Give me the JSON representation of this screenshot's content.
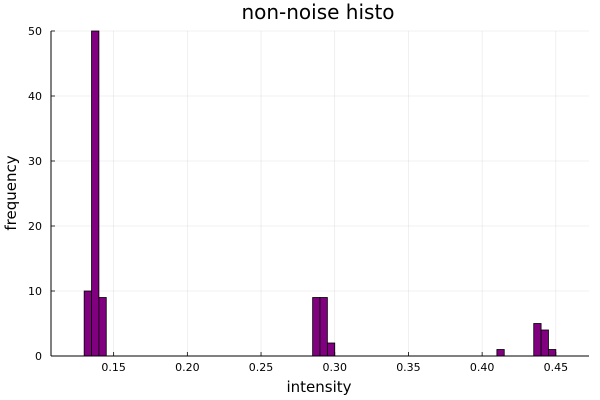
{
  "chart_data": {
    "type": "bar",
    "title": "non-noise histo",
    "xlabel": "intensity",
    "ylabel": "frequency",
    "xlim": [
      0.1075,
      0.4725
    ],
    "ylim": [
      0,
      50
    ],
    "x_ticks": [
      "0.15",
      "0.20",
      "0.25",
      "0.30",
      "0.35",
      "0.40",
      "0.45"
    ],
    "y_ticks": [
      "0",
      "10",
      "20",
      "30",
      "40",
      "50"
    ],
    "grid": true,
    "legend": "none",
    "bar_color": "#800080",
    "bins": [
      {
        "start": 0.13,
        "end": 0.135,
        "count": 10
      },
      {
        "start": 0.135,
        "end": 0.14,
        "count": 50
      },
      {
        "start": 0.14,
        "end": 0.145,
        "count": 9
      },
      {
        "start": 0.285,
        "end": 0.29,
        "count": 9
      },
      {
        "start": 0.29,
        "end": 0.295,
        "count": 9
      },
      {
        "start": 0.295,
        "end": 0.3,
        "count": 2
      },
      {
        "start": 0.41,
        "end": 0.415,
        "count": 1
      },
      {
        "start": 0.435,
        "end": 0.44,
        "count": 5
      },
      {
        "start": 0.44,
        "end": 0.445,
        "count": 4
      },
      {
        "start": 0.445,
        "end": 0.45,
        "count": 1
      }
    ]
  }
}
